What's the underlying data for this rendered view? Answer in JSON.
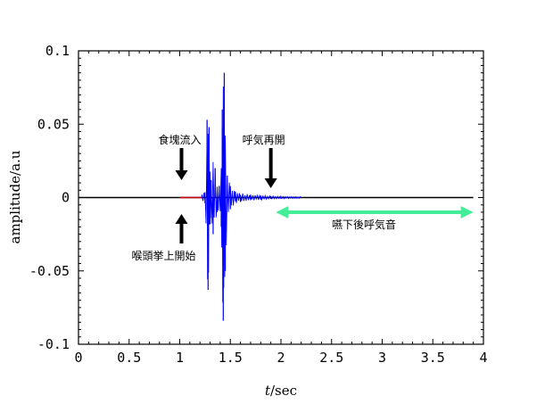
{
  "chart_data": {
    "type": "line",
    "title": "",
    "xlabel_var": "t",
    "xlabel_unit": "/sec",
    "ylabel": "amplitude/a.u",
    "xlim": [
      0,
      4
    ],
    "ylim": [
      -0.1,
      0.1
    ],
    "x_ticks": [
      "0",
      "0.5",
      "1",
      "1.5",
      "2",
      "2.5",
      "3",
      "3.5",
      "4"
    ],
    "y_ticks": [
      "0.1",
      "0.05",
      "0",
      "-0.05",
      "-0.1"
    ],
    "y_tick_values": [
      0.1,
      0.05,
      0,
      -0.05,
      -0.1
    ],
    "grid": false,
    "colors": {
      "baseline": "#000000",
      "swallow": "#0000ff",
      "lift": "#cc0000",
      "arrow": "#000000",
      "post": "#44ee99"
    },
    "series": [
      {
        "segment": "baseline",
        "color": "#000000",
        "x": [
          0,
          3.9
        ],
        "y": [
          0,
          0
        ]
      },
      {
        "segment": "red",
        "color": "#cc0000",
        "x": [
          1.0,
          1.22
        ],
        "y": [
          0,
          0
        ]
      },
      {
        "segment": "blue",
        "color": "#0000ff",
        "x": [
          1.22,
          1.25,
          1.27,
          1.28,
          1.29,
          1.3,
          1.31,
          1.33,
          1.35,
          1.37,
          1.39,
          1.41,
          1.42,
          1.43,
          1.44,
          1.45,
          1.47,
          1.5,
          1.55,
          1.6,
          1.7,
          1.8,
          1.9,
          2.0,
          2.2
        ],
        "y": [
          0.002,
          -0.004,
          0.053,
          -0.063,
          0.048,
          -0.018,
          0.012,
          -0.025,
          0.02,
          -0.01,
          0.008,
          -0.02,
          0.06,
          -0.084,
          0.085,
          -0.05,
          0.015,
          -0.008,
          0.004,
          -0.003,
          0.002,
          -0.0015,
          0.001,
          -0.0008,
          0.0005
        ]
      }
    ],
    "annotations": [
      {
        "text": "食塊流入",
        "x": 1.0,
        "direction": "down"
      },
      {
        "text": "喉頭挙上開始",
        "x": 1.0,
        "direction": "up"
      },
      {
        "text": "呼気再開",
        "x": 1.9,
        "direction": "down"
      },
      {
        "text": "嚥下後呼気音",
        "x_range": [
          1.95,
          3.9
        ],
        "direction": "both"
      }
    ]
  }
}
